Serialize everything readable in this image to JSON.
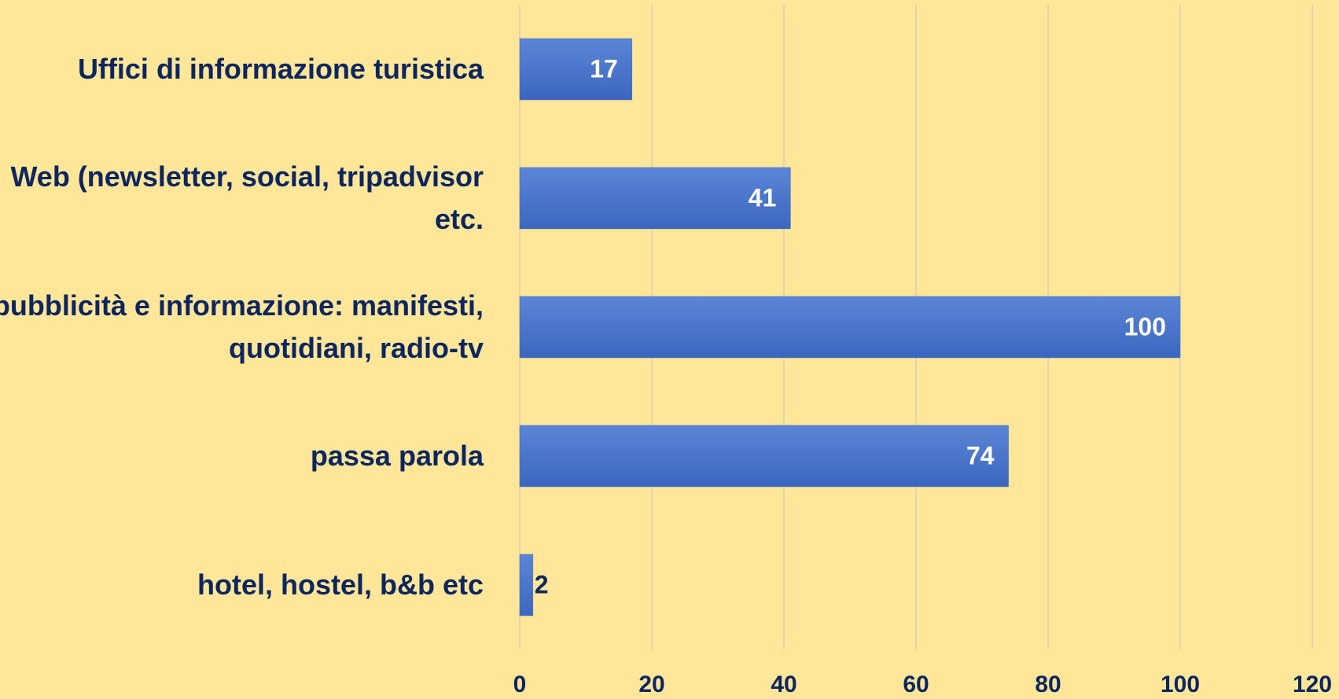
{
  "chart_data": {
    "type": "bar",
    "orientation": "horizontal",
    "categories": [
      "Uffici di informazione turistica",
      "Web (newsletter, social, tripadvisor etc.",
      "pubblicità e informazione: manifesti, quotidiani, radio-tv",
      "passa parola",
      "hotel, hostel, b&b etc"
    ],
    "values": [
      17,
      41,
      100,
      74,
      2
    ],
    "color": "#4472c4",
    "xlim": [
      0,
      120
    ],
    "xticks": [
      0,
      20,
      40,
      60,
      80,
      100,
      120
    ],
    "grid": true
  }
}
